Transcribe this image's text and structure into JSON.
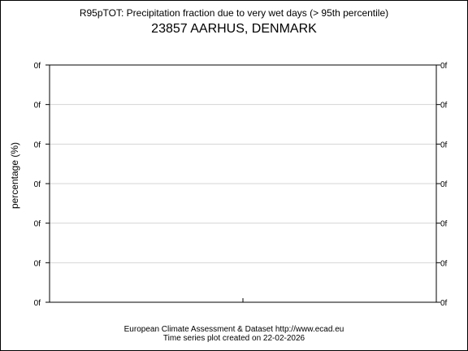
{
  "chart_data": {
    "type": "line",
    "title": "R95pTOT: Precipitation fraction due to very wet days (> 95th percentile)",
    "subtitle": "23857 AARHUS, DENMARK",
    "xlabel": "",
    "ylabel": "percentage (%)",
    "y_tick_labels": [
      "0f",
      "0f",
      "0f",
      "0f",
      "0f",
      "0f",
      "0f"
    ],
    "grid": true,
    "series": []
  },
  "footer": {
    "source": "European Climate Assessment & Dataset  http://www.ecad.eu",
    "created": "Time series plot created on 22-02-2026"
  }
}
